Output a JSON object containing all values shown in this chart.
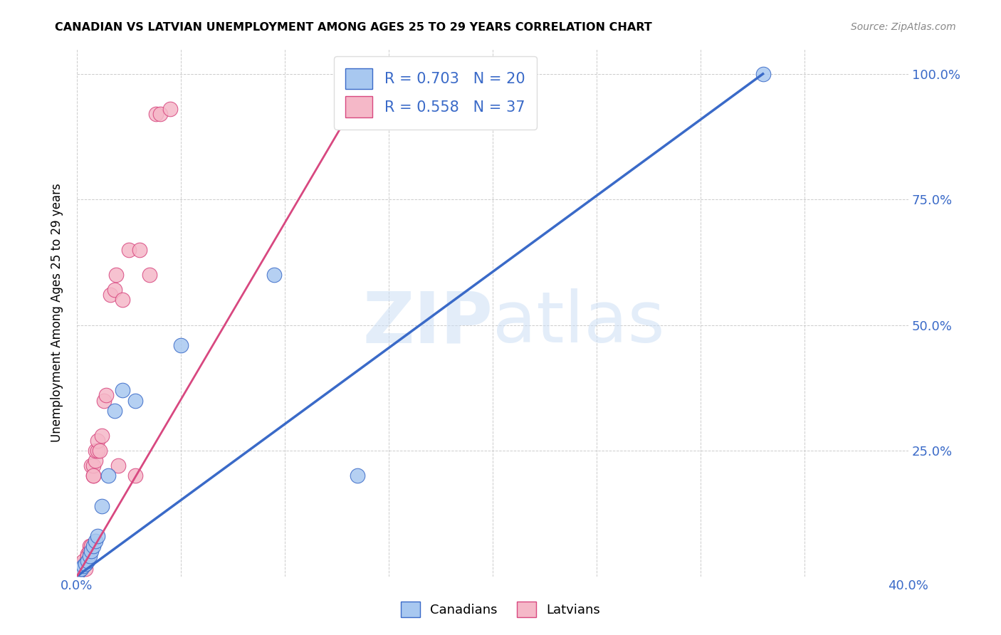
{
  "title": "CANADIAN VS LATVIAN UNEMPLOYMENT AMONG AGES 25 TO 29 YEARS CORRELATION CHART",
  "source": "Source: ZipAtlas.com",
  "ylabel": "Unemployment Among Ages 25 to 29 years",
  "xlim": [
    0.0,
    0.4
  ],
  "ylim": [
    0.0,
    1.05
  ],
  "xticks": [
    0.0,
    0.05,
    0.1,
    0.15,
    0.2,
    0.25,
    0.3,
    0.35,
    0.4
  ],
  "xticklabels_show": [
    "0.0%",
    "40.0%"
  ],
  "xticklabels_pos": [
    0.0,
    0.4
  ],
  "yticks": [
    0.0,
    0.25,
    0.5,
    0.75,
    1.0
  ],
  "yticklabels_right": [
    "",
    "25.0%",
    "50.0%",
    "75.0%",
    "100.0%"
  ],
  "canadian_R": 0.703,
  "canadian_N": 20,
  "latvian_R": 0.558,
  "latvian_N": 37,
  "canadian_color": "#a8c8f0",
  "latvian_color": "#f5b8c8",
  "trendline_canadian_color": "#3a6ac8",
  "trendline_latvian_color": "#d84880",
  "watermark_text": "ZIPatlas",
  "canadians_scatter_x": [
    0.001,
    0.002,
    0.003,
    0.004,
    0.005,
    0.006,
    0.007,
    0.008,
    0.009,
    0.01,
    0.012,
    0.015,
    0.018,
    0.022,
    0.028,
    0.05,
    0.095,
    0.135,
    0.155,
    0.33
  ],
  "canadians_scatter_y": [
    0.01,
    0.015,
    0.02,
    0.025,
    0.03,
    0.04,
    0.05,
    0.06,
    0.07,
    0.08,
    0.14,
    0.2,
    0.33,
    0.37,
    0.35,
    0.46,
    0.6,
    0.2,
    0.93,
    1.0
  ],
  "latvians_scatter_x": [
    0.001,
    0.002,
    0.002,
    0.003,
    0.003,
    0.004,
    0.004,
    0.005,
    0.005,
    0.005,
    0.006,
    0.006,
    0.007,
    0.007,
    0.008,
    0.008,
    0.008,
    0.009,
    0.009,
    0.01,
    0.01,
    0.011,
    0.012,
    0.013,
    0.014,
    0.016,
    0.018,
    0.019,
    0.02,
    0.022,
    0.025,
    0.028,
    0.03,
    0.035,
    0.038,
    0.04,
    0.045
  ],
  "latvians_scatter_y": [
    0.01,
    0.015,
    0.02,
    0.025,
    0.03,
    0.015,
    0.025,
    0.035,
    0.045,
    0.04,
    0.06,
    0.05,
    0.06,
    0.22,
    0.2,
    0.22,
    0.2,
    0.23,
    0.25,
    0.25,
    0.27,
    0.25,
    0.28,
    0.35,
    0.36,
    0.56,
    0.57,
    0.6,
    0.22,
    0.55,
    0.65,
    0.2,
    0.65,
    0.6,
    0.92,
    0.92,
    0.93
  ],
  "canadian_trendline_x": [
    0.0,
    0.33
  ],
  "canadian_trendline_y": [
    0.0,
    1.0
  ],
  "latvian_trendline_x": [
    0.0,
    0.145
  ],
  "latvian_trendline_y": [
    0.0,
    1.02
  ]
}
